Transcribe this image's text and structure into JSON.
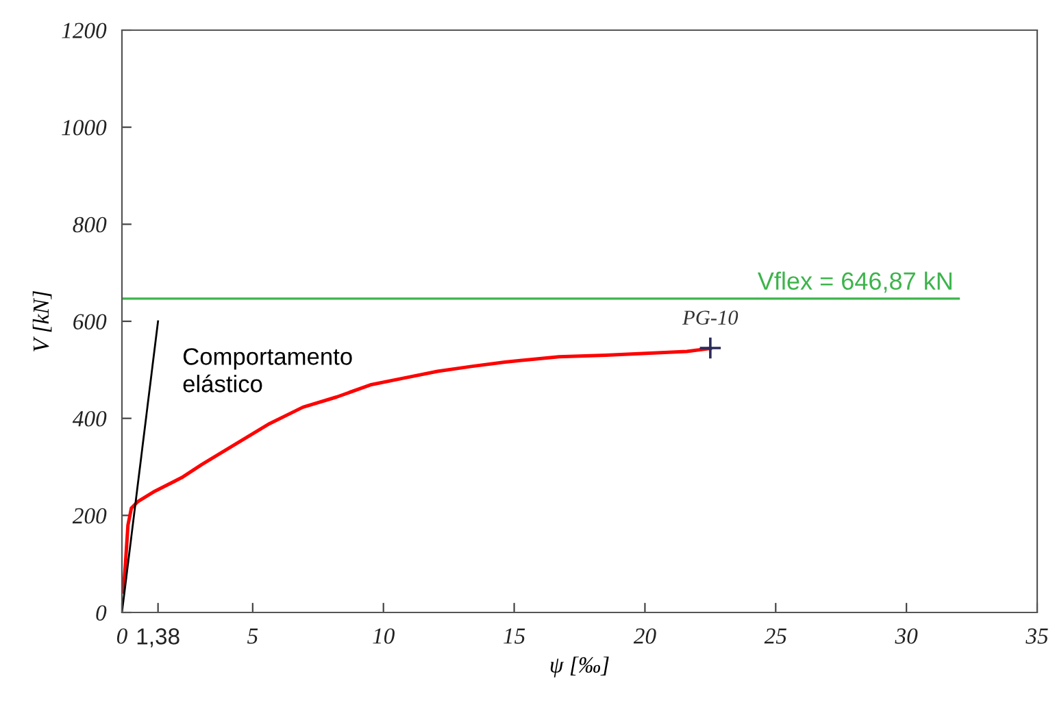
{
  "chart_data": {
    "type": "line",
    "xlabel": "ψ [‰]",
    "ylabel": "V [kN]",
    "xlim": [
      0,
      35
    ],
    "xticks": [
      0,
      {
        "value": 1.38,
        "label": "1,38"
      },
      5,
      10,
      15,
      20,
      25,
      30,
      35
    ],
    "ylim": [
      0,
      1200
    ],
    "yticks": [
      0,
      200,
      400,
      600,
      800,
      1000,
      1200
    ],
    "grid": false,
    "legend": false,
    "series": [
      {
        "color": "#ff0000",
        "marker": "none",
        "x": [
          0.05,
          0.13,
          0.23,
          0.36,
          0.62,
          1.26,
          2.29,
          3.06,
          4.35,
          5.64,
          6.92,
          8.21,
          9.5,
          10.78,
          12.07,
          13.36,
          14.65,
          16.71,
          18.5,
          20.05,
          21.6,
          22.5
        ],
        "values": [
          42,
          97,
          180,
          215,
          229,
          250,
          278,
          305,
          347,
          389,
          423,
          444,
          469,
          483,
          497,
          507,
          516,
          527,
          530,
          534,
          538,
          544
        ]
      },
      {
        "color": "#000000",
        "marker": "none",
        "x": [
          0,
          1.38
        ],
        "values": [
          0,
          600
        ]
      },
      {
        "type": "scatter",
        "name": "PG-10",
        "color": "#2a2a5a",
        "marker": "cross",
        "x": [
          22.5
        ],
        "values": [
          545
        ]
      }
    ],
    "ref_lines": [
      {
        "axis": "y",
        "value": 646.87,
        "label": "Vflex = 646,87 kN",
        "color": "#3cb44b",
        "line_style": "solid"
      }
    ],
    "annotations": [
      "Comportamento\nelástico"
    ]
  }
}
